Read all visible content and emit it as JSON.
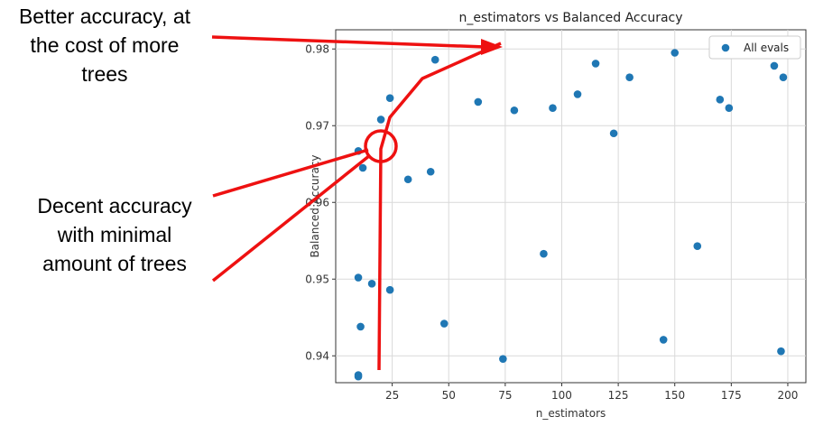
{
  "annotations": {
    "top": [
      "Better accuracy, at",
      "the cost of more",
      "trees"
    ],
    "bottom": [
      "Decent accuracy",
      "with minimal",
      "amount of trees"
    ]
  },
  "colors": {
    "points": "#1f77b4",
    "annotation": "#ee1111",
    "grid": "#d9d9d9"
  },
  "chart_data": {
    "type": "scatter",
    "title": "n_estimators vs Balanced Accuracy",
    "xlabel": "n_estimators",
    "ylabel": "Balanced Accuracy",
    "xlim": [
      0,
      208
    ],
    "ylim": [
      0.9365,
      0.9825
    ],
    "xticks": [
      25,
      50,
      75,
      100,
      125,
      150,
      175,
      200
    ],
    "yticks": [
      0.94,
      0.95,
      0.96,
      0.97,
      0.98
    ],
    "ytick_labels": [
      "0.94",
      "0.95",
      "0.96",
      "0.97",
      "0.98"
    ],
    "grid": true,
    "legend_position": "top-right",
    "series": [
      {
        "name": "All evals",
        "points": [
          [
            10,
            0.9375
          ],
          [
            10,
            0.9373
          ],
          [
            11,
            0.9438
          ],
          [
            10,
            0.9502
          ],
          [
            16,
            0.9494
          ],
          [
            24,
            0.9486
          ],
          [
            48,
            0.9442
          ],
          [
            74,
            0.9396
          ],
          [
            92,
            0.9533
          ],
          [
            145,
            0.9421
          ],
          [
            160,
            0.9543
          ],
          [
            197,
            0.9406
          ],
          [
            10,
            0.9667
          ],
          [
            12,
            0.9645
          ],
          [
            20,
            0.9708
          ],
          [
            24,
            0.9736
          ],
          [
            32,
            0.963
          ],
          [
            42,
            0.964
          ],
          [
            44,
            0.9786
          ],
          [
            63,
            0.9731
          ],
          [
            66,
            0.9805
          ],
          [
            79,
            0.972
          ],
          [
            96,
            0.9723
          ],
          [
            107,
            0.9741
          ],
          [
            115,
            0.9781
          ],
          [
            123,
            0.969
          ],
          [
            130,
            0.9763
          ],
          [
            150,
            0.9795
          ],
          [
            170,
            0.9734
          ],
          [
            174,
            0.9723
          ],
          [
            194,
            0.9778
          ],
          [
            198,
            0.9763
          ]
        ]
      }
    ]
  }
}
